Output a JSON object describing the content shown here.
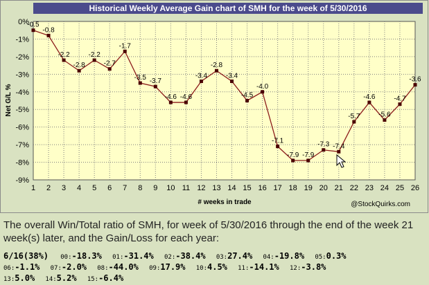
{
  "chart_data": {
    "type": "line",
    "title": "Historical Weekly Average Gain chart of SMH for the week of 5/30/2016",
    "xlabel": "# weeks in trade",
    "ylabel": "Net G/L %",
    "x": [
      1,
      2,
      3,
      4,
      5,
      6,
      7,
      8,
      9,
      10,
      11,
      12,
      13,
      14,
      15,
      16,
      17,
      18,
      19,
      20,
      21,
      22,
      23,
      24,
      25,
      26
    ],
    "y": [
      -0.5,
      -0.8,
      -2.2,
      -2.8,
      -2.2,
      -2.7,
      -1.7,
      -3.5,
      -3.7,
      -4.6,
      -4.6,
      -3.4,
      -2.8,
      -3.4,
      -4.5,
      -4.0,
      -7.1,
      -7.9,
      -7.9,
      -7.3,
      -7.4,
      -5.7,
      -4.6,
      -5.6,
      -4.7,
      -3.6
    ],
    "data_labels": [
      "-0.5",
      "-0.8",
      "-2.2",
      "-2.8",
      "-2.2",
      "-2.7",
      "-1.7",
      "-3.5",
      "-3.7",
      "-4.6",
      "-4.6",
      "-3.4",
      "-2.8",
      "-3.4",
      "-4.5",
      "-4.0",
      "-7.1",
      "-7.9",
      "-7.9",
      "-7.3",
      "-7.4",
      "-5.7",
      "-4.6",
      "-5.6",
      "-4.7",
      "-3.6"
    ],
    "ylim": [
      -9,
      0
    ],
    "y_ticks": [
      "0%",
      "-1%",
      "-2%",
      "-3%",
      "-4%",
      "-5%",
      "-6%",
      "-7%",
      "-8%",
      "-9%"
    ],
    "x_ticks": [
      "1",
      "2",
      "3",
      "4",
      "5",
      "6",
      "7",
      "8",
      "9",
      "10",
      "11",
      "12",
      "13",
      "14",
      "15",
      "16",
      "17",
      "18",
      "19",
      "20",
      "21",
      "22",
      "23",
      "24",
      "25",
      "26"
    ],
    "grid": true,
    "credit": "@StockQuirks.com",
    "colors": {
      "line": "#8b1a1a",
      "marker": "#4a0000",
      "plot_bg": "#ffffc8",
      "title_bg": "#4b4b8c",
      "grid": "#7f7f7f"
    }
  },
  "summary": {
    "text": "The overall Win/Total ratio of SMH, for week of 5/30/2016 through the end of the week 21 week(s) later, and the Gain/Loss for each year:"
  },
  "results": {
    "first": "6/16(38%)",
    "years": [
      {
        "year": "00:",
        "value": "-18.3%"
      },
      {
        "year": "01:",
        "value": "-31.4%"
      },
      {
        "year": "02:",
        "value": "-38.4%"
      },
      {
        "year": "03:",
        "value": "27.4%"
      },
      {
        "year": "04:",
        "value": "-19.8%"
      },
      {
        "year": "05:",
        "value": "0.3%"
      },
      {
        "year": "06:",
        "value": "-1.1%"
      },
      {
        "year": "07:",
        "value": "-2.0%"
      },
      {
        "year": "08:",
        "value": "-44.0%"
      },
      {
        "year": "09:",
        "value": "17.9%"
      },
      {
        "year": "10:",
        "value": "4.5%"
      },
      {
        "year": "11:",
        "value": "-14.1%"
      },
      {
        "year": "12:",
        "value": "-3.8%"
      },
      {
        "year": "13:",
        "value": "5.0%"
      },
      {
        "year": "14:",
        "value": "5.2%"
      },
      {
        "year": "15:",
        "value": "-6.4%"
      }
    ]
  }
}
